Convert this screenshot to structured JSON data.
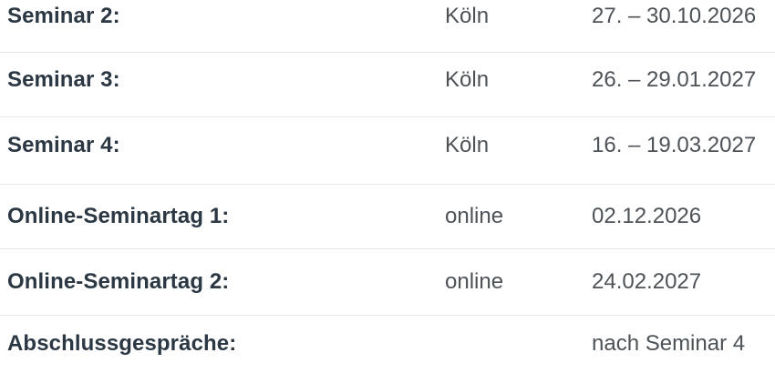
{
  "page": {
    "background_color": "#ffffff",
    "divider_color": "#e8e8e8",
    "label_text_color": "#2b3844",
    "value_text_color": "#4d5257"
  },
  "schedule": {
    "columns": [
      "event",
      "location",
      "date"
    ],
    "rows": [
      {
        "label": "Seminar 2:",
        "location": "Köln",
        "date": "27. – 30.10.2026"
      },
      {
        "label": "Seminar 3:",
        "location": "Köln",
        "date": "26. – 29.01.2027"
      },
      {
        "label": "Seminar 4:",
        "location": "Köln",
        "date": "16. – 19.03.2027"
      },
      {
        "label": "Online-Seminartag 1:",
        "location": "online",
        "date": "02.12.2026"
      },
      {
        "label": "Online-Seminartag 2:",
        "location": "online",
        "date": "24.02.2027"
      },
      {
        "label": "Abschlussgespräche:",
        "location": "",
        "date": "nach Seminar 4"
      }
    ]
  }
}
